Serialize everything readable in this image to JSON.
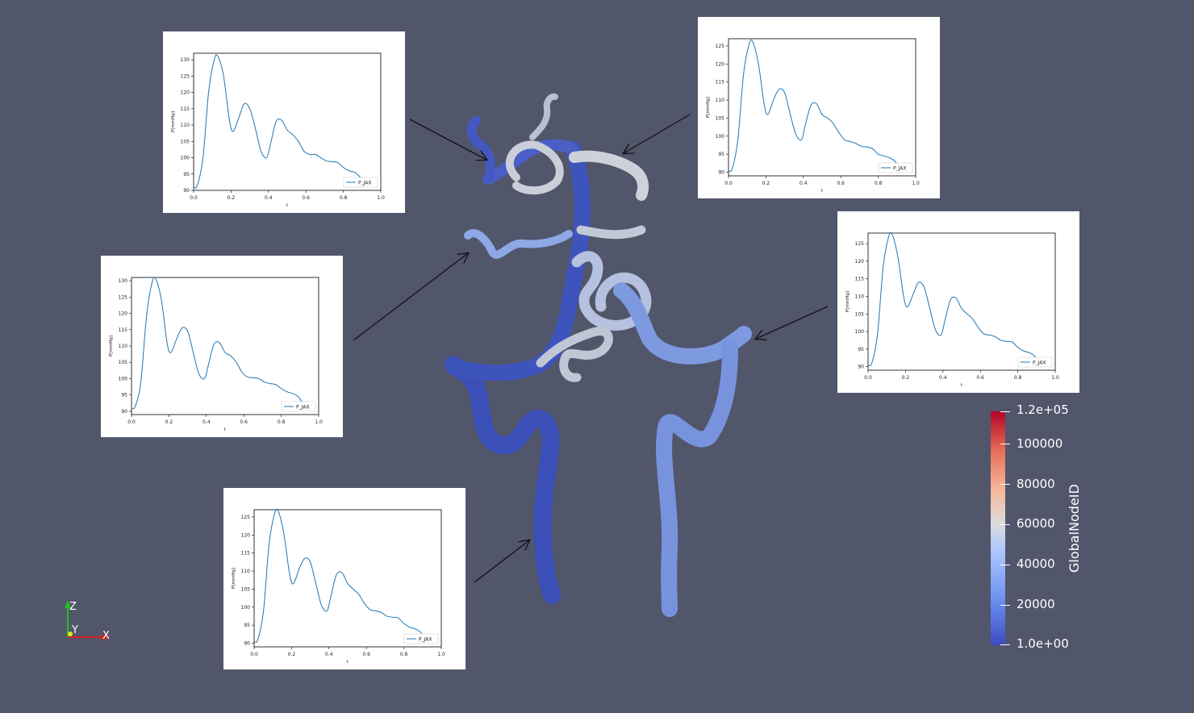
{
  "colors": {
    "background": "#52566b",
    "plot_line": "#1f77b4",
    "vessel_low": "#3b4cc0",
    "vessel_mid": "#dddcdc",
    "vessel_high": "#b40426"
  },
  "colorbar": {
    "title": "GlobalNodeID",
    "labels": [
      "1.2e+05",
      "100000",
      "80000",
      "60000",
      "40000",
      "20000",
      "1.0e+00"
    ]
  },
  "orientation_axes": {
    "z": "Z",
    "y": "Y",
    "x": "X"
  },
  "chart_data": [
    {
      "type": "line",
      "xlabel": "t",
      "ylabel": "P[mmHg]",
      "xlim": [
        0.0,
        1.0
      ],
      "ylim": [
        90,
        132
      ],
      "xticks": [
        "0.0",
        "0.2",
        "0.4",
        "0.6",
        "0.8",
        "1.0"
      ],
      "yticks": [
        "90",
        "95",
        "100",
        "105",
        "110",
        "115",
        "120",
        "125",
        "130"
      ],
      "legend": "P_JAX",
      "legend_position": "lower-right",
      "series": [
        {
          "name": "P_JAX",
          "x": [
            0.0,
            0.02,
            0.05,
            0.08,
            0.11,
            0.13,
            0.16,
            0.19,
            0.21,
            0.24,
            0.27,
            0.3,
            0.33,
            0.36,
            0.39,
            0.41,
            0.44,
            0.47,
            0.5,
            0.53,
            0.56,
            0.59,
            0.62,
            0.65,
            0.68,
            0.71,
            0.74,
            0.77,
            0.8,
            0.83,
            0.86,
            0.89,
            0.92
          ],
          "y": [
            91,
            91.5,
            100,
            120,
            130,
            131,
            125,
            112,
            108,
            112,
            116.5,
            115,
            109,
            102,
            100,
            104,
            111,
            111.5,
            108.5,
            107,
            105,
            102,
            101,
            101,
            100,
            99,
            98.8,
            98.5,
            97,
            96,
            95.5,
            94,
            92
          ]
        }
      ]
    },
    {
      "type": "line",
      "xlabel": "t",
      "ylabel": "P[mmHg]",
      "xlim": [
        0.0,
        1.0
      ],
      "ylim": [
        89,
        127
      ],
      "xticks": [
        "0.0",
        "0.2",
        "0.4",
        "0.6",
        "0.8",
        "1.0"
      ],
      "yticks": [
        "90",
        "95",
        "100",
        "105",
        "110",
        "115",
        "120",
        "125"
      ],
      "legend": "P_JAX",
      "legend_position": "lower-right",
      "series": [
        {
          "name": "P_JAX",
          "x": [
            0.0,
            0.02,
            0.05,
            0.08,
            0.11,
            0.13,
            0.16,
            0.19,
            0.21,
            0.24,
            0.27,
            0.3,
            0.33,
            0.36,
            0.39,
            0.41,
            0.44,
            0.47,
            0.5,
            0.53,
            0.56,
            0.59,
            0.62,
            0.65,
            0.68,
            0.71,
            0.74,
            0.77,
            0.8,
            0.83,
            0.86,
            0.89,
            0.92
          ],
          "y": [
            90.5,
            91,
            99,
            117,
            125.5,
            126,
            120,
            109,
            106,
            110,
            113,
            112,
            106,
            100.5,
            99,
            103,
            108.5,
            109,
            106,
            105,
            103.5,
            101,
            99,
            98.5,
            98,
            97.2,
            97,
            96.5,
            95,
            94.5,
            94,
            93,
            91
          ]
        }
      ]
    },
    {
      "type": "line",
      "xlabel": "t",
      "ylabel": "P[mmHg]",
      "xlim": [
        0.0,
        1.0
      ],
      "ylim": [
        89,
        131
      ],
      "xticks": [
        "0.0",
        "0.2",
        "0.4",
        "0.6",
        "0.8",
        "1.0"
      ],
      "yticks": [
        "90",
        "95",
        "100",
        "105",
        "110",
        "115",
        "120",
        "125",
        "130"
      ],
      "legend": "P_JAX",
      "legend_position": "lower-right",
      "series": [
        {
          "name": "P_JAX",
          "x": [
            0.0,
            0.02,
            0.05,
            0.08,
            0.11,
            0.13,
            0.16,
            0.19,
            0.21,
            0.24,
            0.27,
            0.3,
            0.33,
            0.36,
            0.39,
            0.41,
            0.44,
            0.47,
            0.5,
            0.53,
            0.56,
            0.59,
            0.62,
            0.65,
            0.68,
            0.71,
            0.74,
            0.77,
            0.8,
            0.83,
            0.86,
            0.89,
            0.92
          ],
          "y": [
            91,
            91.5,
            99,
            119,
            129.5,
            130.5,
            124,
            111,
            108,
            112,
            115.5,
            114.5,
            108,
            101.5,
            100,
            104,
            110.5,
            111,
            108,
            107,
            105,
            102,
            100.5,
            100.3,
            100,
            99,
            98.5,
            98.2,
            97,
            96,
            95.5,
            94.5,
            92
          ]
        }
      ]
    },
    {
      "type": "line",
      "xlabel": "t",
      "ylabel": "P[mmHg]",
      "xlim": [
        0.0,
        1.0
      ],
      "ylim": [
        89,
        128
      ],
      "xticks": [
        "0.0",
        "0.2",
        "0.4",
        "0.6",
        "0.8",
        "1.0"
      ],
      "yticks": [
        "90",
        "95",
        "100",
        "105",
        "110",
        "115",
        "120",
        "125"
      ],
      "legend": "P_JAX",
      "legend_position": "lower-right",
      "series": [
        {
          "name": "P_JAX",
          "x": [
            0.0,
            0.02,
            0.05,
            0.08,
            0.11,
            0.13,
            0.16,
            0.19,
            0.21,
            0.24,
            0.27,
            0.3,
            0.33,
            0.36,
            0.39,
            0.41,
            0.44,
            0.47,
            0.5,
            0.53,
            0.56,
            0.59,
            0.62,
            0.65,
            0.68,
            0.71,
            0.74,
            0.77,
            0.8,
            0.83,
            0.86,
            0.89,
            0.92
          ],
          "y": [
            90.5,
            91,
            99,
            118,
            127,
            127.5,
            121,
            110,
            107,
            110.5,
            114,
            112.5,
            106.5,
            100.5,
            99,
            103,
            109,
            109.5,
            106.5,
            105,
            103.5,
            101,
            99.3,
            99,
            98.5,
            97.5,
            97.2,
            97,
            95.5,
            94.5,
            94,
            93,
            90.5
          ]
        }
      ]
    },
    {
      "type": "line",
      "xlabel": "t",
      "ylabel": "P[mmHg]",
      "xlim": [
        0.0,
        1.0
      ],
      "ylim": [
        89,
        127
      ],
      "xticks": [
        "0.0",
        "0.2",
        "0.4",
        "0.6",
        "0.8",
        "1.0"
      ],
      "yticks": [
        "90",
        "95",
        "100",
        "105",
        "110",
        "115",
        "120",
        "125"
      ],
      "legend": "P_JAX",
      "legend_position": "lower-right",
      "series": [
        {
          "name": "P_JAX",
          "x": [
            0.0,
            0.02,
            0.05,
            0.08,
            0.11,
            0.13,
            0.16,
            0.19,
            0.21,
            0.24,
            0.27,
            0.3,
            0.33,
            0.36,
            0.39,
            0.41,
            0.44,
            0.47,
            0.5,
            0.53,
            0.56,
            0.59,
            0.62,
            0.65,
            0.68,
            0.71,
            0.74,
            0.77,
            0.8,
            0.83,
            0.86,
            0.89,
            0.92
          ],
          "y": [
            90.5,
            91,
            99,
            117.5,
            126,
            126.5,
            120,
            109,
            106.5,
            110.5,
            113.5,
            112.5,
            106.5,
            100.5,
            99,
            103,
            109,
            109.5,
            106.5,
            105,
            103.5,
            101,
            99.3,
            99,
            98.5,
            97.5,
            97.2,
            97,
            95.5,
            94.5,
            94,
            93,
            90.5
          ]
        }
      ]
    }
  ]
}
